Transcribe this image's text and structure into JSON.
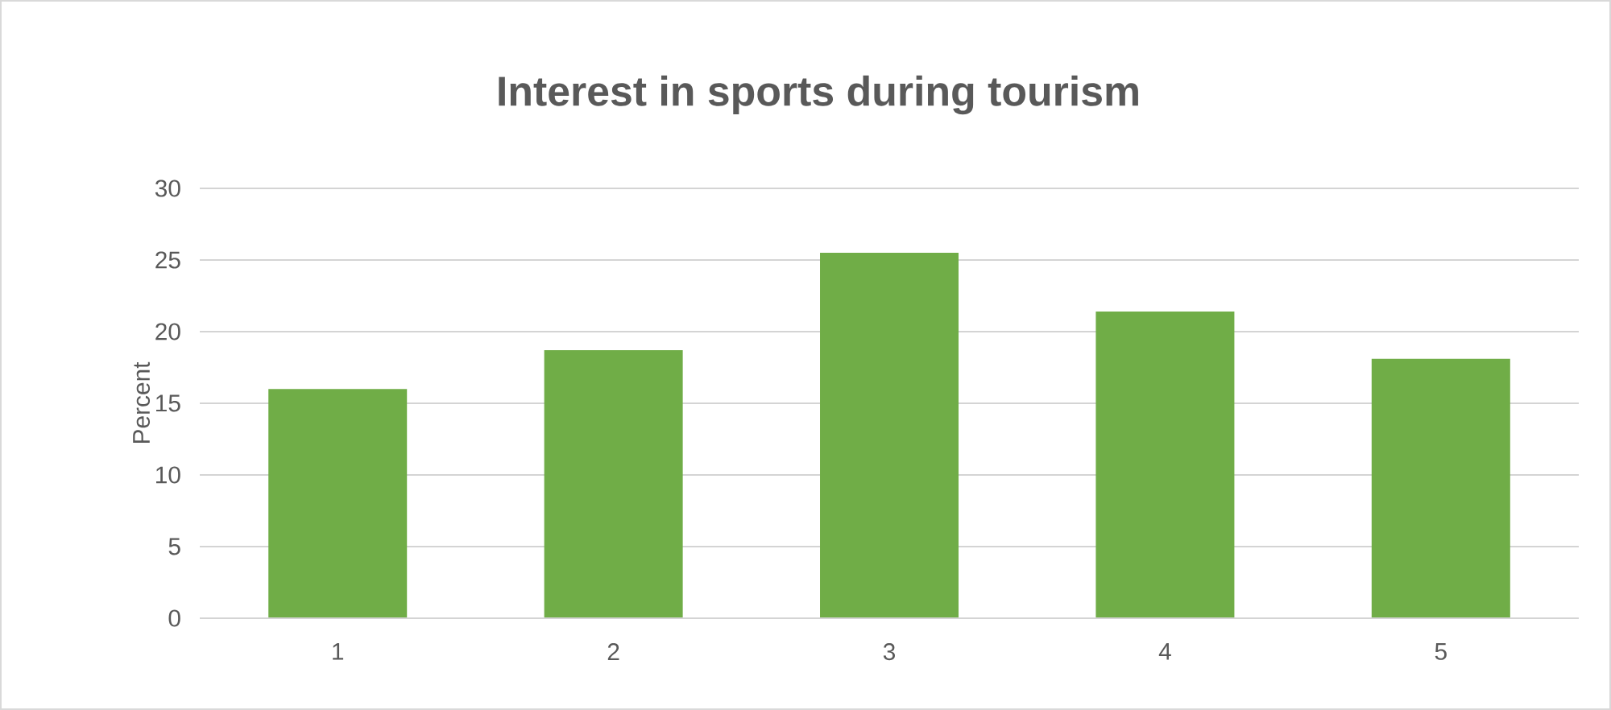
{
  "chart_data": {
    "type": "bar",
    "title": "Interest in sports during tourism",
    "ylabel": "Percent",
    "categories": [
      "1",
      "2",
      "3",
      "4",
      "5"
    ],
    "values": [
      16,
      18.7,
      25.5,
      21.4,
      18.1
    ],
    "color": "#70ad47",
    "ylim": [
      0,
      30
    ],
    "yticks": [
      0,
      5,
      10,
      15,
      20,
      25,
      30
    ],
    "grid": "y"
  }
}
